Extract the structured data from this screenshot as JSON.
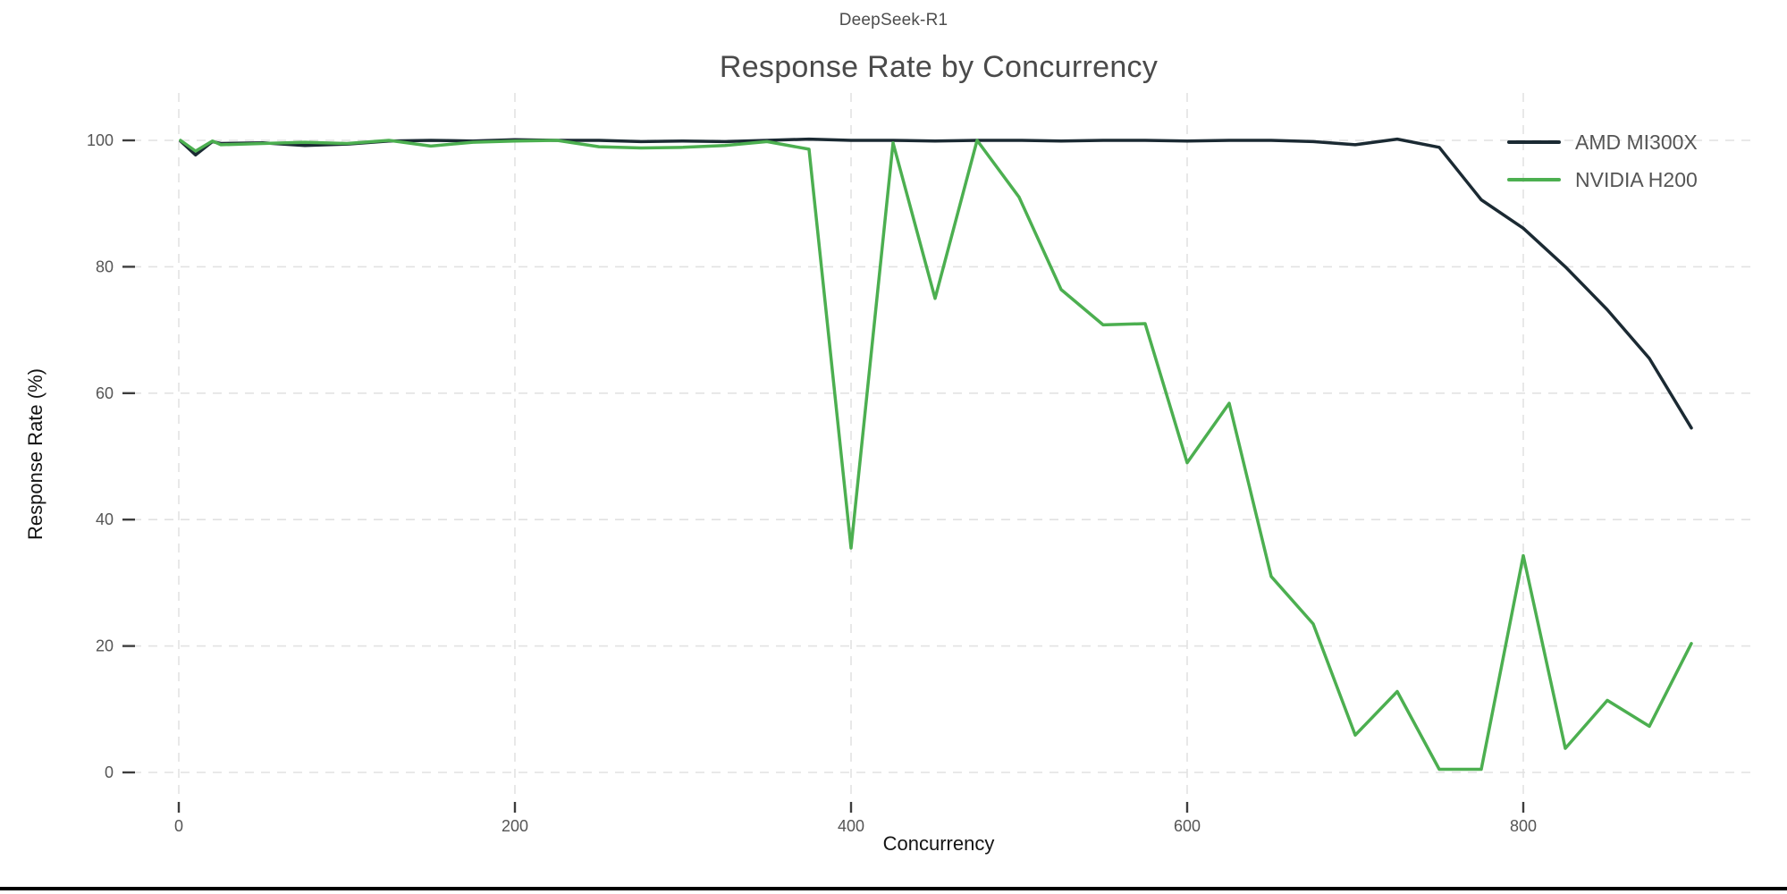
{
  "figure": {
    "suptitle": "DeepSeek-R1"
  },
  "chart_data": {
    "type": "line",
    "title": "Response Rate by Concurrency",
    "xlabel": "Concurrency",
    "ylabel": "Response Rate (%)",
    "x_ticks": [
      0,
      200,
      400,
      600,
      800
    ],
    "y_ticks": [
      0,
      20,
      40,
      60,
      80,
      100
    ],
    "xlim": [
      0,
      900
    ],
    "ylim": [
      0,
      100
    ],
    "grid": true,
    "legend_position": "upper right",
    "grid_color": "#e2e2e2",
    "tick_color": "#3d3d3d",
    "x": [
      1,
      10,
      20,
      25,
      50,
      75,
      100,
      125,
      150,
      175,
      200,
      225,
      250,
      275,
      300,
      325,
      350,
      375,
      400,
      425,
      450,
      475,
      500,
      525,
      550,
      575,
      600,
      625,
      650,
      675,
      700,
      725,
      750,
      775,
      800,
      825,
      850,
      875,
      900
    ],
    "series": [
      {
        "name": "AMD MI300X",
        "color": "#1b2a33",
        "values": [
          99.9,
          97.7,
          99.8,
          99.5,
          99.6,
          99.2,
          99.4,
          99.9,
          100.0,
          99.9,
          100.1,
          100.0,
          100.0,
          99.8,
          99.9,
          99.8,
          100.0,
          100.2,
          100.0,
          100.0,
          99.9,
          100.0,
          100.0,
          99.9,
          100.0,
          100.0,
          99.9,
          100.0,
          100.0,
          99.8,
          99.3,
          100.2,
          98.9,
          90.6,
          86.1,
          80.0,
          73.2,
          65.5,
          54.5
        ]
      },
      {
        "name": "NVIDIA H200",
        "color": "#4caf50",
        "values": [
          100.0,
          98.3,
          99.9,
          99.3,
          99.5,
          99.7,
          99.5,
          100.0,
          99.1,
          99.7,
          99.9,
          100.0,
          99.0,
          98.8,
          98.9,
          99.2,
          99.8,
          98.6,
          35.5,
          99.6,
          75.0,
          100.0,
          91.0,
          76.4,
          70.8,
          71.0,
          49.0,
          58.4,
          31.0,
          23.5,
          5.9,
          12.8,
          0.5,
          0.5,
          34.3,
          3.8,
          11.4,
          7.3,
          20.4
        ]
      }
    ]
  }
}
